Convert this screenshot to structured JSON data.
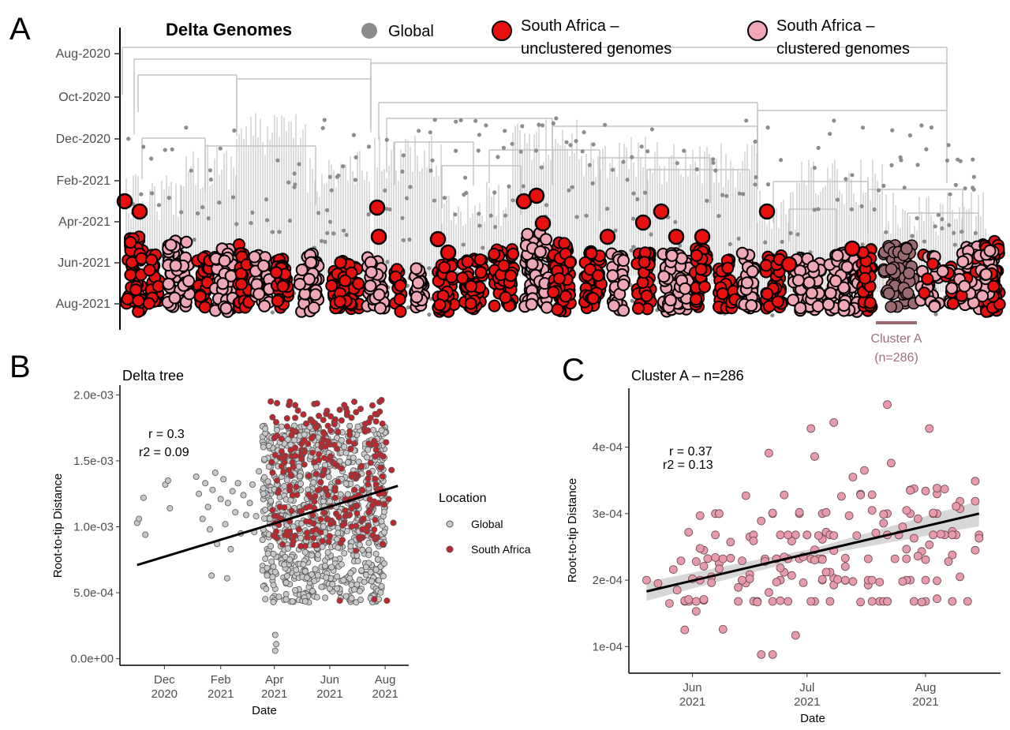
{
  "colors": {
    "global": "#8c8c8c",
    "global_light": "#c8c8c8",
    "sa_unclustered": "#e8100f",
    "sa_clustered": "#f0a7b5",
    "cluster_a": "#9b6a71",
    "sa_point_b": "#c0272d",
    "cluster_point": "#e79aab",
    "tree_branch": "#c4c4c4"
  },
  "panels": {
    "a": {
      "label": "A"
    },
    "b": {
      "label": "B"
    },
    "c": {
      "label": "C"
    }
  },
  "chart_data": [
    {
      "type": "scatter",
      "panel": "A",
      "legend": {
        "title": "Delta Genomes",
        "items": [
          {
            "name": "Global",
            "color": "#8c8c8c"
          },
          {
            "name_line1": "South Africa –",
            "name_line2": "unclustered genomes",
            "color": "#e8100f"
          },
          {
            "name_line1": "South Africa –",
            "name_line2": "clustered genomes",
            "color": "#f0a7b5"
          }
        ]
      },
      "y_ticks": [
        "Aug-2020",
        "Oct-2020",
        "Dec-2020",
        "Feb-2021",
        "Apr-2021",
        "Jun-2021",
        "Aug-2021"
      ],
      "annotation": {
        "line1": "Cluster A",
        "line2": "(n=286)"
      }
    },
    {
      "type": "scatter",
      "panel": "B",
      "title": "Delta tree",
      "xlabel": "Date",
      "ylabel": "Root-to-tip Distance",
      "x_ticks": [
        {
          "date": "2020-12-01",
          "line1": "Dec",
          "line2": "2020"
        },
        {
          "date": "2021-02-01",
          "line1": "Feb",
          "line2": "2021"
        },
        {
          "date": "2021-04-01",
          "line1": "Apr",
          "line2": "2021"
        },
        {
          "date": "2021-06-01",
          "line1": "Jun",
          "line2": "2021"
        },
        {
          "date": "2021-08-01",
          "line1": "Aug",
          "line2": "2021"
        }
      ],
      "y_ticks": [
        {
          "value": 0.0,
          "label": "0.0e+00"
        },
        {
          "value": 0.0005,
          "label": "5.0e-04"
        },
        {
          "value": 0.001,
          "label": "1.0e-03"
        },
        {
          "value": 0.0015,
          "label": "1.5e-03"
        },
        {
          "value": 0.002,
          "label": "2.0e-03"
        }
      ],
      "xlim": [
        "2020-10-20",
        "2021-08-20"
      ],
      "ylim": [
        -5e-05,
        0.00205
      ],
      "stats": {
        "r": "r = 0.3",
        "r2": "r2 = 0.09"
      },
      "legend": {
        "title": "Location",
        "items": [
          {
            "name": "Global",
            "color": "#c8c8c8"
          },
          {
            "name": "South Africa",
            "color": "#c0272d"
          }
        ]
      },
      "regression": {
        "x": [
          "2020-11-01",
          "2021-08-15"
        ],
        "y": [
          0.00071,
          0.00131
        ]
      },
      "global_points": [
        [
          "2020-11-01",
          0.00103
        ],
        [
          "2020-11-03",
          0.00106
        ],
        [
          "2020-11-08",
          0.00122
        ],
        [
          "2020-11-10",
          0.00094
        ],
        [
          "2020-12-02",
          0.00132
        ],
        [
          "2020-12-05",
          0.00135
        ],
        [
          "2020-12-07",
          0.00114
        ],
        [
          "2021-01-05",
          0.00138
        ],
        [
          "2021-01-08",
          0.00125
        ],
        [
          "2021-01-12",
          0.00106
        ],
        [
          "2021-01-15",
          0.00133
        ],
        [
          "2021-01-18",
          0.00115
        ],
        [
          "2021-01-20",
          0.00098
        ],
        [
          "2021-01-23",
          0.00128
        ],
        [
          "2021-01-26",
          0.00141
        ],
        [
          "2021-01-28",
          0.00087
        ],
        [
          "2021-02-01",
          0.00121
        ],
        [
          "2021-02-04",
          0.00136
        ],
        [
          "2021-02-06",
          0.00102
        ],
        [
          "2021-02-09",
          0.00118
        ],
        [
          "2021-02-12",
          0.00083
        ],
        [
          "2021-02-14",
          0.00127
        ],
        [
          "2021-02-17",
          0.00111
        ],
        [
          "2021-02-20",
          0.00133
        ],
        [
          "2021-02-23",
          0.00095
        ],
        [
          "2021-02-26",
          0.00124
        ],
        [
          "2021-03-01",
          0.00109
        ],
        [
          "2021-01-22",
          0.00063
        ],
        [
          "2021-02-08",
          0.00061
        ],
        [
          "2021-03-05",
          0.00118
        ],
        [
          "2021-03-08",
          0.00132
        ],
        [
          "2021-03-10",
          0.00096
        ],
        [
          "2021-03-12",
          0.00108
        ],
        [
          "2021-03-15",
          0.00142
        ],
        [
          "2021-03-20",
          0.00125
        ],
        [
          "2021-03-24",
          0.00063
        ],
        [
          "2021-04-02",
          0.00018
        ],
        [
          "2021-04-03",
          0.00011
        ],
        [
          "2021-04-02",
          6e-05
        ]
      ],
      "sa_points": [
        [
          "2021-03-28",
          0.00195
        ],
        [
          "2021-04-04",
          0.00169
        ],
        [
          "2021-04-10",
          0.00152
        ],
        [
          "2021-04-18",
          0.00131
        ],
        [
          "2021-04-22",
          0.00089
        ],
        [
          "2021-05-01",
          0.00112
        ],
        [
          "2021-05-06",
          0.00104
        ],
        [
          "2021-05-12",
          0.00167
        ],
        [
          "2021-05-20",
          0.00155
        ],
        [
          "2021-05-25",
          0.00181
        ],
        [
          "2021-06-01",
          0.00093
        ],
        [
          "2021-06-06",
          0.00148
        ],
        [
          "2021-06-10",
          0.00172
        ],
        [
          "2021-06-15",
          0.00101
        ],
        [
          "2021-06-20",
          0.00187
        ],
        [
          "2021-06-24",
          0.00121
        ],
        [
          "2021-06-28",
          0.00163
        ],
        [
          "2021-07-03",
          0.00092
        ],
        [
          "2021-07-06",
          0.00146
        ],
        [
          "2021-07-10",
          0.00178
        ],
        [
          "2021-07-14",
          0.00111
        ],
        [
          "2021-07-18",
          0.00192
        ],
        [
          "2021-07-22",
          0.00132
        ],
        [
          "2021-07-26",
          0.00155
        ],
        [
          "2021-07-29",
          0.00087
        ],
        [
          "2021-08-02",
          0.00164
        ],
        [
          "2021-08-05",
          0.00121
        ],
        [
          "2021-08-08",
          0.00143
        ],
        [
          "2021-08-10",
          0.00103
        ],
        [
          "2021-07-28",
          0.00196
        ],
        [
          "2021-07-20",
          0.00045
        ],
        [
          "2021-06-12",
          0.00044
        ],
        [
          "2021-08-03",
          0.00044
        ],
        [
          "2021-06-30",
          0.00082
        ],
        [
          "2021-05-30",
          0.00124
        ],
        [
          "2021-07-01",
          0.00116
        ],
        [
          "2021-06-25",
          0.00138
        ],
        [
          "2021-07-12",
          0.00099
        ],
        [
          "2021-05-15",
          0.00086
        ],
        [
          "2021-06-18",
          0.00108
        ]
      ]
    },
    {
      "type": "scatter",
      "panel": "C",
      "title": "Cluster A – n=286",
      "xlabel": "Date",
      "ylabel": "Root-to-tip Distance",
      "x_ticks": [
        {
          "date": "2021-06-01",
          "line1": "Jun",
          "line2": "2021"
        },
        {
          "date": "2021-07-01",
          "line1": "Jul",
          "line2": "2021"
        },
        {
          "date": "2021-08-01",
          "line1": "Aug",
          "line2": "2021"
        }
      ],
      "y_ticks": [
        {
          "value": 0.0001,
          "label": "1e-04"
        },
        {
          "value": 0.0002,
          "label": "2e-04"
        },
        {
          "value": 0.0003,
          "label": "3e-04"
        },
        {
          "value": 0.0004,
          "label": "4e-04"
        }
      ],
      "xlim": [
        "2021-05-16",
        "2021-08-20"
      ],
      "ylim": [
        6e-05,
        0.000485
      ],
      "stats": {
        "r": "r = 0.37",
        "r2": "r2 = 0.13"
      },
      "regression": {
        "x": [
          "2021-05-20",
          "2021-08-15"
        ],
        "y": [
          0.000183,
          0.0003
        ]
      },
      "points": [
        [
          "2021-05-20",
          0.0002
        ],
        [
          "2021-05-23",
          0.000195
        ],
        [
          "2021-05-26",
          0.000165
        ],
        [
          "2021-05-27",
          0.000216
        ],
        [
          "2021-05-28",
          0.000185
        ],
        [
          "2021-05-29",
          0.000229
        ],
        [
          "2021-05-30",
          0.000169
        ],
        [
          "2021-05-31",
          0.000171
        ],
        [
          "2021-05-31",
          0.000272
        ],
        [
          "2021-06-01",
          0.000202
        ],
        [
          "2021-06-02",
          0.000228
        ],
        [
          "2021-06-03",
          0.000297
        ],
        [
          "2021-05-30",
          0.000125
        ],
        [
          "2021-06-04",
          0.000171
        ],
        [
          "2021-06-06",
          0.000196
        ],
        [
          "2021-06-07",
          0.000234
        ],
        [
          "2021-06-08",
          0.000217
        ],
        [
          "2021-06-09",
          0.000126
        ],
        [
          "2021-06-11",
          0.000233
        ],
        [
          "2021-06-13",
          0.000189
        ],
        [
          "2021-06-14",
          0.000229
        ],
        [
          "2021-06-15",
          0.000327
        ],
        [
          "2021-06-16",
          0.000202
        ],
        [
          "2021-06-17",
          0.000259
        ],
        [
          "2021-06-18",
          0.000167
        ],
        [
          "2021-06-19",
          0.000289
        ],
        [
          "2021-06-19",
          8.8e-05
        ],
        [
          "2021-06-20",
          0.000228
        ],
        [
          "2021-06-21",
          0.000391
        ],
        [
          "2021-06-22",
          0.000301
        ],
        [
          "2021-06-22",
          8.8e-05
        ],
        [
          "2021-06-23",
          0.000197
        ],
        [
          "2021-06-24",
          0.000169
        ],
        [
          "2021-06-25",
          0.000328
        ],
        [
          "2021-06-25",
          0.000235
        ],
        [
          "2021-06-26",
          0.000268
        ],
        [
          "2021-06-27",
          0.000207
        ],
        [
          "2021-06-28",
          0.000117
        ],
        [
          "2021-06-29",
          0.000302
        ],
        [
          "2021-06-30",
          0.000196
        ],
        [
          "2021-06-30",
          0.000235
        ],
        [
          "2021-07-01",
          0.000268
        ],
        [
          "2021-07-02",
          0.000168
        ],
        [
          "2021-07-02",
          0.000428
        ],
        [
          "2021-07-03",
          0.000386
        ],
        [
          "2021-07-04",
          0.000267
        ],
        [
          "2021-07-05",
          0.000201
        ],
        [
          "2021-07-05",
          0.000231
        ],
        [
          "2021-07-06",
          0.000302
        ],
        [
          "2021-07-07",
          0.000168
        ],
        [
          "2021-07-08",
          0.000437
        ],
        [
          "2021-07-08",
          0.000267
        ],
        [
          "2021-07-09",
          0.000201
        ],
        [
          "2021-07-10",
          0.000326
        ],
        [
          "2021-07-11",
          0.000233
        ],
        [
          "2021-07-12",
          0.000297
        ],
        [
          "2021-07-13",
          0.000355
        ],
        [
          "2021-07-13",
          0.000198
        ],
        [
          "2021-07-14",
          0.000267
        ],
        [
          "2021-07-15",
          0.000167
        ],
        [
          "2021-07-16",
          0.000365
        ],
        [
          "2021-07-17",
          0.000232
        ],
        [
          "2021-07-18",
          0.000305
        ],
        [
          "2021-07-19",
          0.000271
        ],
        [
          "2021-07-20",
          0.000197
        ],
        [
          "2021-07-21",
          0.000299
        ],
        [
          "2021-07-22",
          0.000464
        ],
        [
          "2021-07-22",
          0.000168
        ],
        [
          "2021-07-23",
          0.000376
        ],
        [
          "2021-07-24",
          0.000232
        ],
        [
          "2021-07-25",
          0.000268
        ],
        [
          "2021-07-26",
          0.000198
        ],
        [
          "2021-07-27",
          0.000305
        ],
        [
          "2021-07-28",
          0.000335
        ],
        [
          "2021-07-29",
          0.000263
        ],
        [
          "2021-07-30",
          0.000236
        ],
        [
          "2021-07-31",
          0.000167
        ],
        [
          "2021-08-01",
          0.000334
        ],
        [
          "2021-08-02",
          0.000428
        ],
        [
          "2021-08-03",
          0.000301
        ],
        [
          "2021-08-04",
          0.000199
        ],
        [
          "2021-08-05",
          0.000269
        ],
        [
          "2021-08-06",
          0.000337
        ],
        [
          "2021-08-07",
          0.000228
        ],
        [
          "2021-08-08",
          0.000268
        ],
        [
          "2021-08-10",
          0.000205
        ],
        [
          "2021-08-04",
          0.000172
        ],
        [
          "2021-08-15",
          0.000263
        ]
      ]
    }
  ]
}
